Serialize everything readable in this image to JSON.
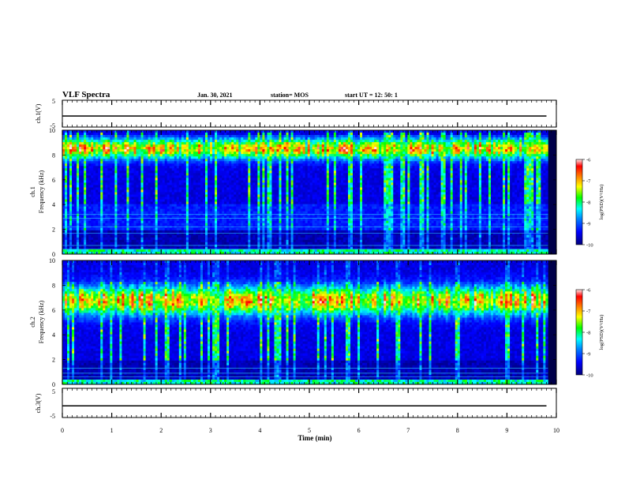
{
  "header": {
    "title": "VLF Spectra",
    "date": "Jan. 30, 2021",
    "station": "station= MOS",
    "start": "start  UT =   12: 50: 1"
  },
  "chart_data": [
    {
      "type": "line",
      "ylabel": "ch.1(V)",
      "ylim": [
        -5,
        5
      ],
      "yticks": [
        "5",
        "-5"
      ],
      "x": [
        0,
        9.8
      ],
      "values": [
        -0.9,
        -0.9
      ]
    },
    {
      "type": "heatmap",
      "ylabel_top": "ch.1",
      "ylabel": "Frequency (kHz)",
      "ylim": [
        0,
        10
      ],
      "yticks": [
        "0",
        "2",
        "4",
        "6",
        "8",
        "10"
      ],
      "xlim": [
        0,
        10
      ],
      "colorbar": {
        "label": "log(PSD)(V²/Hz)",
        "range": [
          -10,
          -6
        ],
        "ticks": [
          "-6",
          "-7",
          "-8",
          "-9",
          "-10"
        ]
      },
      "dominant_band_khz": [
        7.5,
        9.5
      ],
      "peak_log_psd": -6.5
    },
    {
      "type": "heatmap",
      "ylabel_top": "ch.2",
      "ylabel": "Frequency (kHz)",
      "ylim": [
        0,
        10
      ],
      "yticks": [
        "0",
        "2",
        "4",
        "6",
        "8",
        "10"
      ],
      "xlim": [
        0,
        10
      ],
      "colorbar": {
        "label": "log(PSD)(V²/Hz)",
        "range": [
          -10,
          -6
        ],
        "ticks": [
          "-6",
          "-7",
          "-8",
          "-9",
          "-10"
        ]
      },
      "dominant_band_khz": [
        5.5,
        8.0
      ],
      "peak_log_psd": -6.5
    },
    {
      "type": "line",
      "ylabel": "ch.3(V)",
      "ylim": [
        -5,
        5
      ],
      "yticks": [
        "5",
        "-5"
      ],
      "x": [
        0,
        9.8
      ],
      "values": [
        -1.0,
        -1.0
      ]
    }
  ],
  "xaxis": {
    "label": "Time  (min)",
    "ticks": [
      "0",
      "1",
      "2",
      "3",
      "4",
      "5",
      "6",
      "7",
      "8",
      "9",
      "10"
    ],
    "xlim": [
      0,
      10
    ]
  },
  "colors": {
    "scale": [
      "#00007a",
      "#0000ff",
      "#0080ff",
      "#00ffff",
      "#00ff00",
      "#ffff00",
      "#ff8000",
      "#ff0000",
      "#ffffff"
    ]
  }
}
